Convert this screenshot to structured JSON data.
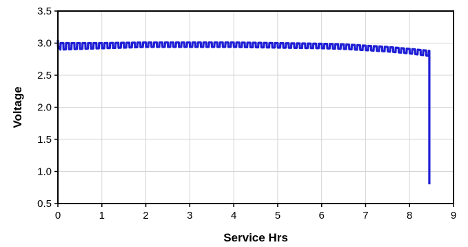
{
  "chart_data": {
    "type": "line",
    "title": "",
    "xlabel": "Service Hrs",
    "ylabel": "Voltage",
    "xlim": [
      0,
      9
    ],
    "ylim": [
      0.5,
      3.5
    ],
    "x_ticks": [
      0,
      1,
      2,
      3,
      4,
      5,
      6,
      7,
      8,
      9
    ],
    "y_ticks": [
      0.5,
      1.0,
      1.5,
      2.0,
      2.5,
      3.0,
      3.5
    ],
    "x_tick_labels": [
      "0",
      "1",
      "2",
      "3",
      "4",
      "5",
      "6",
      "7",
      "8",
      "9"
    ],
    "y_tick_labels": [
      "0.5",
      "1.0",
      "1.5",
      "2.0",
      "2.5",
      "3.0",
      "3.5"
    ],
    "grid": true,
    "legend": "none",
    "series": [
      {
        "color": "#1f1fd6",
        "pulse_period_hrs": 0.125,
        "upper_envelope": {
          "x": [
            0,
            0.05,
            1,
            2,
            3,
            4,
            5,
            6,
            6.5,
            7,
            7.5,
            8,
            8.45
          ],
          "y": [
            3.05,
            3.0,
            3.0,
            3.01,
            3.01,
            3.01,
            3.0,
            2.99,
            2.98,
            2.96,
            2.94,
            2.91,
            2.88
          ]
        },
        "lower_envelope": {
          "x": [
            0,
            0.05,
            1,
            2,
            3,
            4,
            5,
            6,
            6.5,
            7,
            7.5,
            8,
            8.45
          ],
          "y": [
            2.95,
            2.9,
            2.92,
            2.94,
            2.94,
            2.94,
            2.93,
            2.92,
            2.91,
            2.89,
            2.87,
            2.84,
            2.8
          ]
        },
        "cutoff": {
          "x": 8.45,
          "y_end": 0.8
        }
      }
    ]
  }
}
